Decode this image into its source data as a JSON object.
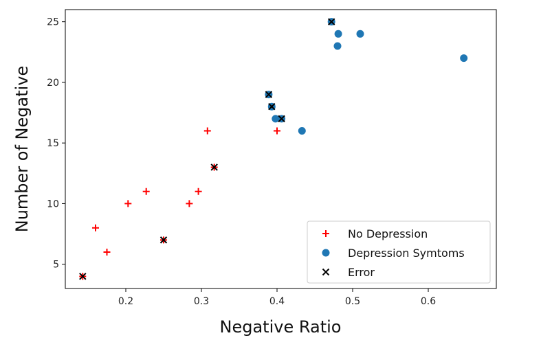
{
  "chart_data": {
    "type": "scatter",
    "title": "",
    "xlabel": "Negative Ratio",
    "ylabel": "Number of Negative",
    "xlim": [
      0.12,
      0.69
    ],
    "ylim": [
      3,
      26
    ],
    "xticks": [
      0.2,
      0.3,
      0.4,
      0.5,
      0.6
    ],
    "xtick_labels": [
      "0.2",
      "0.3",
      "0.4",
      "0.5",
      "0.6"
    ],
    "yticks": [
      5,
      10,
      15,
      20,
      25
    ],
    "ytick_labels": [
      "5",
      "10",
      "15",
      "20",
      "25"
    ],
    "grid": false,
    "legend_position": "bottom-right",
    "series": [
      {
        "name": "No Depression",
        "marker": "plus",
        "color": "#ff0000",
        "points": [
          [
            0.143,
            4
          ],
          [
            0.16,
            8
          ],
          [
            0.175,
            6
          ],
          [
            0.203,
            10
          ],
          [
            0.227,
            11
          ],
          [
            0.25,
            7
          ],
          [
            0.284,
            10
          ],
          [
            0.296,
            11
          ],
          [
            0.308,
            16
          ],
          [
            0.317,
            13
          ],
          [
            0.4,
            16
          ]
        ]
      },
      {
        "name": "Depression Symtoms",
        "marker": "circle",
        "color": "#1f77b4",
        "points": [
          [
            0.389,
            19
          ],
          [
            0.393,
            18
          ],
          [
            0.398,
            17
          ],
          [
            0.406,
            17
          ],
          [
            0.433,
            16
          ],
          [
            0.472,
            25
          ],
          [
            0.48,
            23
          ],
          [
            0.481,
            24
          ],
          [
            0.51,
            24
          ],
          [
            0.647,
            22
          ]
        ]
      },
      {
        "name": "Error",
        "marker": "x",
        "color": "#000000",
        "points": [
          [
            0.143,
            4
          ],
          [
            0.25,
            7
          ],
          [
            0.317,
            13
          ],
          [
            0.389,
            19
          ],
          [
            0.393,
            18
          ],
          [
            0.406,
            17
          ],
          [
            0.472,
            25
          ]
        ]
      }
    ]
  }
}
